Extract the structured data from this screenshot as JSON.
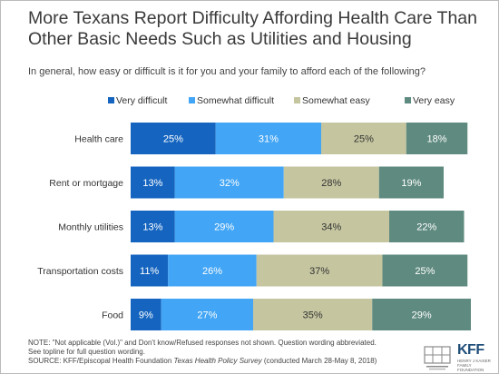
{
  "title": "More Texans Report Difficulty Affording Health Care Than Other Basic Needs Such as Utilities and Housing",
  "subtitle": "In general, how easy or difficult is it for you and your family to afford each of the following?",
  "notes": {
    "line1": "NOTE: \"Not applicable (Vol.)\" and Don't know/Refused responses not shown. Question wording abbreviated.",
    "line2": "See topline for full question wording.",
    "source_prefix": "SOURCE: KFF/Episcopal Health Foundation ",
    "source_italic": "Texas Health Policy Survey",
    "source_suffix": " (conducted March 28-May 8, 2018)"
  },
  "logos": {
    "kff_mark": "KFF",
    "kff_sub": "HENRY J KAISER FAMILY FOUNDATION",
    "ehf_icon": "episcopal-health-foundation-logo"
  },
  "colors": {
    "very_difficult": "#1565c0",
    "somewhat_difficult": "#42a5f5",
    "somewhat_easy": "#c5c6a0",
    "very_easy": "#5f8a7f"
  },
  "chart_data": {
    "type": "bar",
    "orientation": "horizontal",
    "stacked": true,
    "categories": [
      "Health care",
      "Rent or mortgage",
      "Monthly utilities",
      "Transportation costs",
      "Food"
    ],
    "series": [
      {
        "name": "Very difficult",
        "values": [
          25,
          13,
          13,
          11,
          9
        ],
        "color": "#1565c0"
      },
      {
        "name": "Somewhat difficult",
        "values": [
          31,
          32,
          29,
          26,
          27
        ],
        "color": "#42a5f5"
      },
      {
        "name": "Somewhat easy",
        "values": [
          25,
          28,
          34,
          37,
          35
        ],
        "color": "#c5c6a0"
      },
      {
        "name": "Very easy",
        "values": [
          18,
          19,
          22,
          25,
          29
        ],
        "color": "#5f8a7f"
      }
    ],
    "value_suffix": "%",
    "xlim": [
      0,
      100
    ],
    "legend_position": "top",
    "grid": false
  }
}
